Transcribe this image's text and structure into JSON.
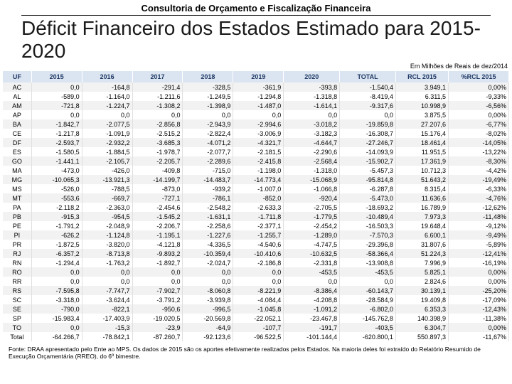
{
  "header": "Consultoria de Orçamento e Fiscalização Financeira",
  "title": "Déficit Financeiro dos Estados Estimado para 2015-2020",
  "subnote": "Em Milhões de Reais de dez/2014",
  "columns": [
    "UF",
    "2015",
    "2016",
    "2017",
    "2018",
    "2019",
    "2020",
    "TOTAL",
    "RCL 2015",
    "%RCL 2015"
  ],
  "rows": [
    [
      "AC",
      "0,0",
      "-164,8",
      "-291,4",
      "-328,5",
      "-361,9",
      "-393,8",
      "-1.540,4",
      "3.949,1",
      "0,00%"
    ],
    [
      "AL",
      "-589,0",
      "-1.164,0",
      "-1.211,6",
      "-1.249,5",
      "-1.294,8",
      "-1.318,8",
      "-8.419,4",
      "6.311,5",
      "-9,33%"
    ],
    [
      "AM",
      "-721,8",
      "-1.224,7",
      "-1.308,2",
      "-1.398,9",
      "-1.487,0",
      "-1.614,1",
      "-9.317,6",
      "10.998,9",
      "-6,56%"
    ],
    [
      "AP",
      "0,0",
      "0,0",
      "0,0",
      "0,0",
      "0,0",
      "0,0",
      "0,0",
      "3.875,5",
      "0,00%"
    ],
    [
      "BA",
      "-1.842,7",
      "-2.077,5",
      "-2.856,8",
      "-2.943,9",
      "-2.994,6",
      "-3.018,2",
      "-19.859,8",
      "27.207,6",
      "-6,77%"
    ],
    [
      "CE",
      "-1.217,8",
      "-1.091,9",
      "-2.515,2",
      "-2.822,4",
      "-3.006,9",
      "-3.182,3",
      "-16.308,7",
      "15.176,4",
      "-8,02%"
    ],
    [
      "DF",
      "-2.593,7",
      "-2.932,2",
      "-3.685,3",
      "-4.071,2",
      "-4.321,7",
      "-4.644,7",
      "-27.246,7",
      "18.461,4",
      "-14,05%"
    ],
    [
      "ES",
      "-1.580,5",
      "-1.884,5",
      "-1.978,7",
      "-2.077,7",
      "-2.181,5",
      "-2.290,6",
      "-14.093,9",
      "11.951,5",
      "-13,22%"
    ],
    [
      "GO",
      "-1.441,1",
      "-2.105,7",
      "-2.205,7",
      "-2.289,6",
      "-2.415,8",
      "-2.568,4",
      "-15.902,7",
      "17.361,9",
      "-8,30%"
    ],
    [
      "MA",
      "-473,0",
      "-426,0",
      "-409,8",
      "-715,0",
      "-1.198,0",
      "-1.318,0",
      "-5.457,3",
      "10.712,3",
      "-4,42%"
    ],
    [
      "MG",
      "-10.065,3",
      "-13.921,3",
      "-14.199,7",
      "-14.483,7",
      "-14.773,4",
      "-15.068,9",
      "-95.814,8",
      "51.643,2",
      "-19,49%"
    ],
    [
      "MS",
      "-526,0",
      "-788,5",
      "-873,0",
      "-939,2",
      "-1.007,0",
      "-1.066,8",
      "-6.287,8",
      "8.315,4",
      "-6,33%"
    ],
    [
      "MT",
      "-553,6",
      "-669,7",
      "-727,1",
      "-786,1",
      "-852,0",
      "-920,4",
      "-5.473,0",
      "11.636,6",
      "-4,76%"
    ],
    [
      "PA",
      "-2.118,2",
      "-2.363,0",
      "-2.454,6",
      "-2.548,2",
      "-2.633,3",
      "-2.705,5",
      "-18.693,2",
      "16.789,9",
      "-12,62%"
    ],
    [
      "PB",
      "-915,3",
      "-954,5",
      "-1.545,2",
      "-1.631,1",
      "-1.711,8",
      "-1.779,5",
      "-10.489,4",
      "7.973,3",
      "-11,48%"
    ],
    [
      "PE",
      "-1.791,2",
      "-2.048,9",
      "-2.206,7",
      "-2.258,6",
      "-2.377,1",
      "-2.454,2",
      "-16.503,3",
      "19.648,4",
      "-9,12%"
    ],
    [
      "PI",
      "-626,2",
      "-1.124,8",
      "-1.195,1",
      "-1.227,6",
      "-1.255,7",
      "-1.289,0",
      "-7.570,3",
      "6.600,1",
      "-9,49%"
    ],
    [
      "PR",
      "-1.872,5",
      "-3.820,0",
      "-4.121,8",
      "-4.336,5",
      "-4.540,6",
      "-4.747,5",
      "-29.396,8",
      "31.807,6",
      "-5,89%"
    ],
    [
      "RJ",
      "-6.357,2",
      "-8.713,8",
      "-9.893,2",
      "-10.359,4",
      "-10.410,6",
      "-10.632,5",
      "-58.366,4",
      "51.224,3",
      "-12,41%"
    ],
    [
      "RN",
      "-1.294,4",
      "-1.763,2",
      "-1.892,7",
      "-2.024,7",
      "-2.186,8",
      "-2.331,8",
      "-13.908,8",
      "7.996,9",
      "-16,19%"
    ],
    [
      "RO",
      "0,0",
      "0,0",
      "0,0",
      "0,0",
      "0,0",
      "-453,5",
      "-453,5",
      "5.825,1",
      "0,00%"
    ],
    [
      "RR",
      "0,0",
      "0,0",
      "0,0",
      "0,0",
      "0,0",
      "0,0",
      "0,0",
      "2.824,6",
      "0,00%"
    ],
    [
      "RS",
      "-7.595,8",
      "-7.747,7",
      "-7.902,7",
      "-8.060,8",
      "-8.221,9",
      "-8.386,4",
      "-60.143,7",
      "30.139,1",
      "-25,20%"
    ],
    [
      "SC",
      "-3.318,0",
      "-3.624,4",
      "-3.791,2",
      "-3.939,8",
      "-4.084,4",
      "-4.208,8",
      "-28.584,9",
      "19.409,8",
      "-17,09%"
    ],
    [
      "SE",
      "-790,0",
      "-822,1",
      "-950,6",
      "-996,5",
      "-1.045,8",
      "-1.091,2",
      "-6.802,0",
      "6.353,3",
      "-12,43%"
    ],
    [
      "SP",
      "-15.983,4",
      "-17.403,9",
      "-19.020,5",
      "-20.569,8",
      "-22.052,1",
      "-23.467,8",
      "-145.762,8",
      "140.398,9",
      "-11,38%"
    ],
    [
      "TO",
      "0,0",
      "-15,3",
      "-23,9",
      "-64,9",
      "-107,7",
      "-191,7",
      "-403,5",
      "6.304,7",
      "0,00%"
    ],
    [
      "Total",
      "-64.266,7",
      "-78.842,1",
      "-87.260,7",
      "-92.123,6",
      "-96.522,5",
      "-101.144,4",
      "-620.800,1",
      "550.897,3",
      "-11,67%"
    ]
  ],
  "footnote": "Fonte: DRAA apresentado pelo Ente ao MPS. Os dados de 2015 são os aportes efetivamente realizados pelos Estados. Na maioria deles foi extraído do Relatório Resumido de Execução Orçamentária (RREO), do 6º bimestre.",
  "style": {
    "header_bg": "#dbe5f1",
    "header_fg": "#1f3864",
    "row_odd_bg": "#f2f2f2",
    "row_even_bg": "#ffffff",
    "font_size_table": 9,
    "font_size_title": 28
  }
}
